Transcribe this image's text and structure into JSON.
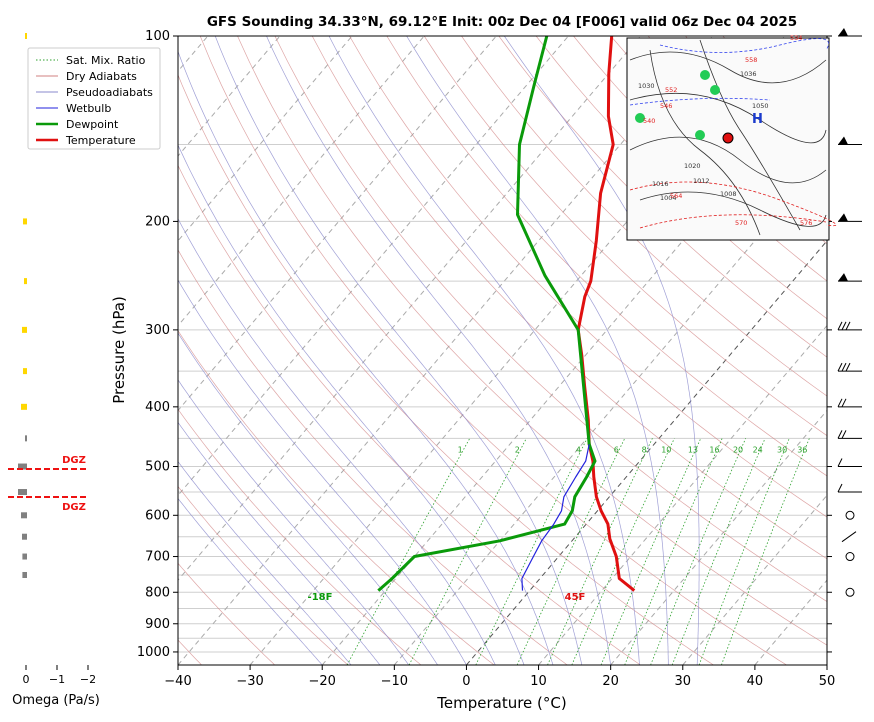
{
  "title": "GFS Sounding 34.33°N, 69.12°E Init: 00z Dec 04 [F006] valid 06z Dec 04 2025",
  "axes": {
    "xlabel": "Temperature (°C)",
    "ylabel": "Pressure (hPa)",
    "xticks": [
      "-40",
      "-30",
      "-20",
      "-10",
      "0",
      "10",
      "20",
      "30",
      "40",
      "50"
    ],
    "yticks": [
      "100",
      "200",
      "300",
      "400",
      "500",
      "600",
      "700",
      "800",
      "900",
      "1000"
    ]
  },
  "legend": {
    "items": [
      {
        "label": "Sat. Mix. Ratio",
        "color": "#2ca02c",
        "style": "dotted"
      },
      {
        "label": "Dry Adiabats",
        "color": "#d08080",
        "style": "solid"
      },
      {
        "label": "Pseudoadiabats",
        "color": "#8888cc",
        "style": "solid"
      },
      {
        "label": "Wetbulb",
        "color": "#2222dd",
        "style": "solid"
      },
      {
        "label": "Dewpoint",
        "color": "#0a9a0a",
        "style": "thick"
      },
      {
        "label": "Temperature",
        "color": "#e01010",
        "style": "thick"
      }
    ]
  },
  "omega": {
    "label": "Omega (Pa/s)",
    "ticks": [
      "0",
      "−1",
      "−2"
    ],
    "dgz_label_1": "DGZ",
    "dgz_label_2": "DGZ"
  },
  "surface": {
    "dewpoint_label": "-18F",
    "temperature_label": "45F"
  },
  "mixing_ratio_labels": [
    "1",
    "2",
    "4",
    "6",
    "8",
    "10",
    "13",
    "16",
    "20",
    "24",
    "30",
    "36"
  ],
  "colors": {
    "temperature": "#e01010",
    "dewpoint": "#0a9a0a",
    "wetbulb": "#2222dd",
    "dry_adiabat": "#d08080",
    "moist_adiabat": "#8888cc",
    "mixing": "#2ca02c",
    "dgz": "#ee1111",
    "omega_yellow": "#ffd700",
    "omega_gray": "#808080"
  },
  "map_inset": {
    "pressure_labels": [
      "1050",
      "1036",
      "1030",
      "1020",
      "1016",
      "1012",
      "1008",
      "1004",
      "534",
      "540",
      "546",
      "552",
      "558",
      "564",
      "570",
      "576"
    ],
    "high_marker": "H",
    "location_marker": "red-dot-icon"
  },
  "chart_data": {
    "type": "line",
    "title": "GFS Sounding 34.33°N, 69.12°E Init: 00z Dec 04 [F006] valid 06z Dec 04 2025",
    "xlabel": "Temperature (°C)",
    "ylabel": "Pressure (hPa)",
    "xlim": [
      -40,
      50
    ],
    "ylim": [
      1050,
      100
    ],
    "yscale": "log",
    "skew": "skew-T",
    "grid": true,
    "legend_position": "top-left",
    "series": [
      {
        "name": "Temperature",
        "points": [
          [
            14.5,
            795
          ],
          [
            11,
            760
          ],
          [
            8,
            700
          ],
          [
            5,
            655
          ],
          [
            3,
            620
          ],
          [
            0.5,
            590
          ],
          [
            -1.8,
            560
          ],
          [
            -4.5,
            520
          ],
          [
            -6.5,
            490
          ],
          [
            -9,
            460
          ],
          [
            -12,
            420
          ],
          [
            -16.5,
            370
          ],
          [
            -20.5,
            330
          ],
          [
            -24,
            300
          ],
          [
            -27,
            265
          ],
          [
            -28,
            250
          ],
          [
            -32,
            215
          ],
          [
            -37,
            180
          ],
          [
            -41,
            150
          ],
          [
            -45,
            135
          ],
          [
            -50,
            115
          ],
          [
            -54,
            100
          ]
        ]
      },
      {
        "name": "Dewpoint",
        "points": [
          [
            -21,
            795
          ],
          [
            -20.5,
            760
          ],
          [
            -20,
            700
          ],
          [
            -10,
            660
          ],
          [
            -3,
            620
          ],
          [
            -3.5,
            590
          ],
          [
            -4.8,
            560
          ],
          [
            -5.5,
            520
          ],
          [
            -6.2,
            490
          ],
          [
            -9,
            460
          ],
          [
            -24,
            300
          ],
          [
            -35,
            245
          ],
          [
            -46,
            195
          ],
          [
            -54,
            150
          ],
          [
            -59,
            120
          ],
          [
            -63,
            100
          ]
        ]
      },
      {
        "name": "Wetbulb",
        "points": [
          [
            -1,
            795
          ],
          [
            -2.5,
            760
          ],
          [
            -3.5,
            700
          ],
          [
            -4.2,
            660
          ],
          [
            -4.5,
            620
          ],
          [
            -5,
            590
          ],
          [
            -6.3,
            560
          ],
          [
            -7,
            520
          ],
          [
            -7.5,
            490
          ],
          [
            -9,
            460
          ]
        ]
      }
    ],
    "surface_labels": {
      "dewpoint": "-18F",
      "temperature": "45F"
    },
    "wind_barbs_pressures": [
      100,
      150,
      200,
      250,
      300,
      350,
      400,
      450,
      500,
      550,
      600,
      650,
      700,
      800
    ]
  }
}
